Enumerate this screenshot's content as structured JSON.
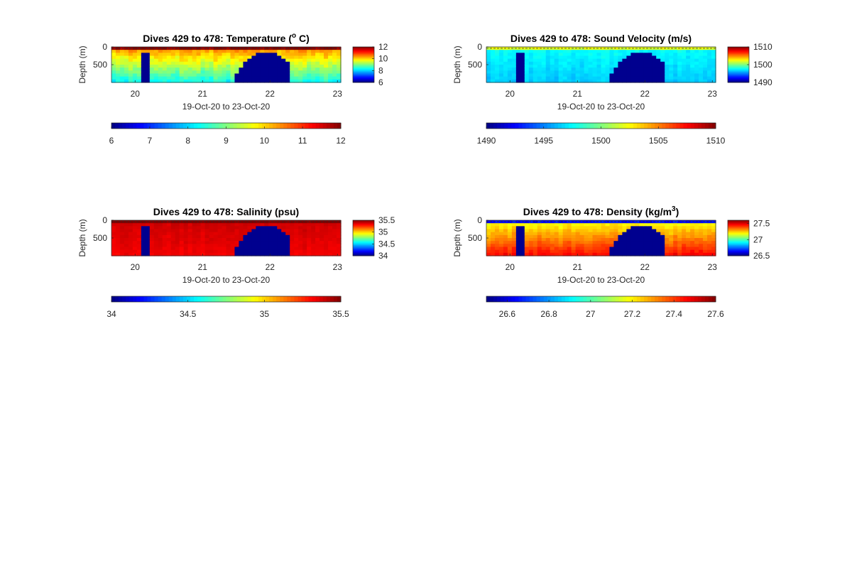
{
  "figure": {
    "background": "#ffffff",
    "colormap": "jet",
    "mask_color": "#00008f"
  },
  "chart_data": [
    {
      "type": "heatmap",
      "title": "Dives 429 to 478: Temperature (",
      "title_sup": "o",
      "title_after": " C)",
      "xlabel": "19-Oct-20 to 23-Oct-20",
      "ylabel": "Depth (m)",
      "xlim": [
        19.65,
        23.05
      ],
      "xticks": [
        "20",
        "21",
        "22",
        "23"
      ],
      "ylim": [
        0,
        1000
      ],
      "yticks": [
        "0",
        "500"
      ],
      "field": {
        "surface": 12.0,
        "mid": 10.3,
        "deep": 8.4,
        "noise": 0.35
      },
      "colorbar_right": {
        "range": [
          6,
          12
        ],
        "ticks": [
          "12",
          "10",
          "8",
          "6"
        ]
      },
      "colorbar_bottom": {
        "range": [
          6,
          12
        ],
        "ticks": [
          "6",
          "7",
          "8",
          "9",
          "10",
          "11",
          "12"
        ]
      }
    },
    {
      "type": "heatmap",
      "title": "Dives 429 to 478: Sound Velocity (m/s)",
      "xlabel": "19-Oct-20 to 23-Oct-20",
      "ylabel": "Depth (m)",
      "xlim": [
        19.65,
        23.05
      ],
      "xticks": [
        "20",
        "21",
        "22",
        "23"
      ],
      "ylim": [
        0,
        1000
      ],
      "yticks": [
        "0",
        "500"
      ],
      "field": {
        "surface": 1502.0,
        "mid": 1497.5,
        "deep": 1496.5,
        "noise": 0.6
      },
      "colorbar_right": {
        "range": [
          1490,
          1510
        ],
        "ticks": [
          "1510",
          "1500",
          "1490"
        ]
      },
      "colorbar_bottom": {
        "range": [
          1490,
          1510
        ],
        "ticks": [
          "1490",
          "1495",
          "1500",
          "1505",
          "1510"
        ]
      }
    },
    {
      "type": "heatmap",
      "title": "Dives 429 to 478: Salinity (psu)",
      "xlabel": "19-Oct-20 to 23-Oct-20",
      "ylabel": "Depth (m)",
      "xlim": [
        19.65,
        23.05
      ],
      "xticks": [
        "20",
        "21",
        "22",
        "23"
      ],
      "ylim": [
        0,
        1000
      ],
      "yticks": [
        "0",
        "500"
      ],
      "field": {
        "surface": 35.5,
        "mid": 35.38,
        "deep": 35.33,
        "noise": 0.03
      },
      "colorbar_right": {
        "range": [
          34,
          35.5
        ],
        "ticks": [
          "35.5",
          "35",
          "34.5",
          "34"
        ]
      },
      "colorbar_bottom": {
        "range": [
          34,
          35.5
        ],
        "ticks": [
          "34",
          "34.5",
          "35",
          "35.5"
        ]
      }
    },
    {
      "type": "heatmap",
      "title": "Dives 429 to 478: Density (kg/m",
      "title_sup": "3",
      "title_after": ")",
      "xlabel": "19-Oct-20 to 23-Oct-20",
      "ylabel": "Depth (m)",
      "xlim": [
        19.65,
        23.05
      ],
      "xticks": [
        "20",
        "21",
        "22",
        "23"
      ],
      "ylim": [
        0,
        1000
      ],
      "yticks": [
        "0",
        "500"
      ],
      "field": {
        "surface": 26.65,
        "mid": 27.2,
        "deep": 27.45,
        "noise": 0.04
      },
      "colorbar_right": {
        "range": [
          26.5,
          27.6
        ],
        "ticks": [
          "27.5",
          "27",
          "26.5"
        ]
      },
      "colorbar_bottom": {
        "range": [
          26.5,
          27.6
        ],
        "ticks": [
          "26.6",
          "26.8",
          "27",
          "27.2",
          "27.4",
          "27.6"
        ]
      }
    }
  ],
  "mask": {
    "column": {
      "x0": 20.12,
      "x1": 20.24,
      "depth_top": 140
    },
    "dome": {
      "x0": 21.48,
      "x1": 22.32,
      "center": 21.95,
      "depth_min": 160,
      "depth_max": 850
    }
  }
}
